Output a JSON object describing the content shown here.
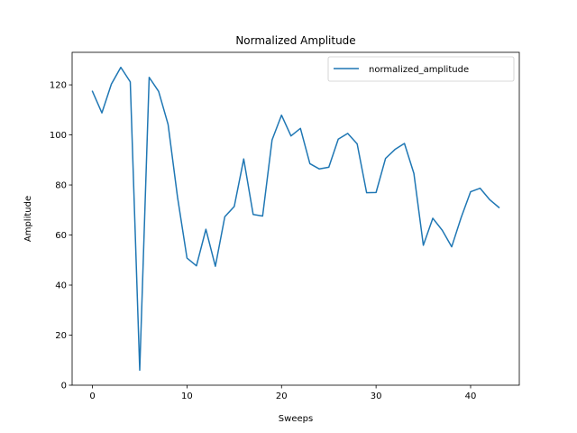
{
  "chart_data": {
    "type": "line",
    "title": "Normalized Amplitude",
    "xlabel": "Sweeps",
    "ylabel": "Amplitude",
    "xlim": [
      -2.15,
      45.15
    ],
    "ylim": [
      0,
      133
    ],
    "xticks": [
      0,
      10,
      20,
      30,
      40
    ],
    "yticks": [
      0,
      20,
      40,
      60,
      80,
      100,
      120
    ],
    "grid": false,
    "legend_position": "top-right",
    "series": [
      {
        "name": "normalized_amplitude",
        "color": "#1f77b4",
        "x": [
          0,
          1,
          2,
          3,
          4,
          5,
          6,
          7,
          8,
          9,
          10,
          11,
          12,
          13,
          14,
          15,
          16,
          17,
          18,
          19,
          20,
          21,
          22,
          23,
          24,
          25,
          26,
          27,
          28,
          29,
          30,
          31,
          32,
          33,
          34,
          35,
          36,
          37,
          38,
          39,
          40,
          41,
          42,
          43
        ],
        "values": [
          117.4,
          108.8,
          120.3,
          127.0,
          121.2,
          6.0,
          123.0,
          117.4,
          104.2,
          75.1,
          50.8,
          47.7,
          62.3,
          47.5,
          67.3,
          71.4,
          90.4,
          68.2,
          67.6,
          98.0,
          107.9,
          99.6,
          102.6,
          88.5,
          86.4,
          87.1,
          98.3,
          100.6,
          96.4,
          76.9,
          77.0,
          90.6,
          94.2,
          96.6,
          84.6,
          55.9,
          66.7,
          61.9,
          55.3,
          67.0,
          77.3,
          78.7,
          74.2,
          71.0
        ]
      }
    ]
  }
}
